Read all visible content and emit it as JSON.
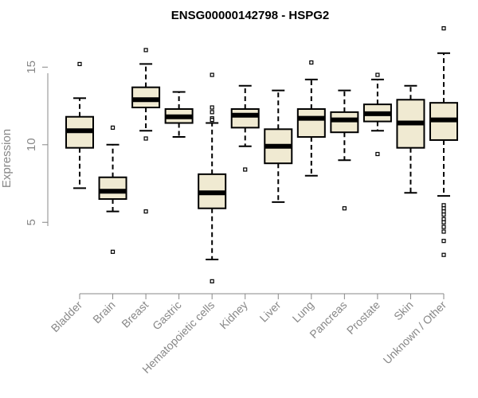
{
  "chart_data": {
    "type": "box",
    "title": "ENSG00000142798 - HSPG2",
    "xlabel": "",
    "ylabel": "Expression",
    "ylim": [
      0.5,
      18.3
    ],
    "yticks": [
      5,
      10,
      15
    ],
    "grid": false,
    "colors": {
      "box_fill": "#F0EAD2",
      "box_stroke": "#000000",
      "median": "#000000",
      "axis": "#888888"
    },
    "categories": [
      "Bladder",
      "Brain",
      "Breast",
      "Gastric",
      "Hematopoietic cells",
      "Kidney",
      "Liver",
      "Lung",
      "Pancreas",
      "Prostate",
      "Skin",
      "Unknown / Other"
    ],
    "boxes": [
      {
        "category": "Bladder",
        "whisker_low": 7.2,
        "q1": 9.8,
        "median": 10.9,
        "q3": 11.8,
        "whisker_high": 13.0,
        "outliers": [
          15.2
        ]
      },
      {
        "category": "Brain",
        "whisker_low": 5.7,
        "q1": 6.5,
        "median": 7.0,
        "q3": 7.9,
        "whisker_high": 10.0,
        "outliers": [
          11.1,
          3.1
        ]
      },
      {
        "category": "Breast",
        "whisker_low": 10.9,
        "q1": 12.4,
        "median": 12.9,
        "q3": 13.7,
        "whisker_high": 15.2,
        "outliers": [
          16.1,
          10.4,
          5.7
        ]
      },
      {
        "category": "Gastric",
        "whisker_low": 10.5,
        "q1": 11.4,
        "median": 11.8,
        "q3": 12.3,
        "whisker_high": 13.4,
        "outliers": []
      },
      {
        "category": "Hematopoietic cells",
        "whisker_low": 2.6,
        "q1": 5.9,
        "median": 6.9,
        "q3": 8.1,
        "whisker_high": 11.4,
        "outliers": [
          14.5,
          12.4,
          12.1,
          11.7,
          11.6,
          1.2
        ]
      },
      {
        "category": "Kidney",
        "whisker_low": 9.9,
        "q1": 11.1,
        "median": 11.9,
        "q3": 12.3,
        "whisker_high": 13.8,
        "outliers": [
          8.4
        ]
      },
      {
        "category": "Liver",
        "whisker_low": 6.3,
        "q1": 8.8,
        "median": 9.9,
        "q3": 11.0,
        "whisker_high": 13.5,
        "outliers": []
      },
      {
        "category": "Lung",
        "whisker_low": 8.0,
        "q1": 10.5,
        "median": 11.7,
        "q3": 12.3,
        "whisker_high": 14.2,
        "outliers": [
          15.3
        ]
      },
      {
        "category": "Pancreas",
        "whisker_low": 9.0,
        "q1": 10.8,
        "median": 11.6,
        "q3": 12.1,
        "whisker_high": 13.5,
        "outliers": [
          5.9
        ]
      },
      {
        "category": "Prostate",
        "whisker_low": 10.9,
        "q1": 11.5,
        "median": 12.0,
        "q3": 12.6,
        "whisker_high": 14.2,
        "outliers": [
          14.5,
          9.4
        ]
      },
      {
        "category": "Skin",
        "whisker_low": 6.9,
        "q1": 9.8,
        "median": 11.4,
        "q3": 12.9,
        "whisker_high": 13.8,
        "outliers": []
      },
      {
        "category": "Unknown / Other",
        "whisker_low": 6.7,
        "q1": 10.3,
        "median": 11.6,
        "q3": 12.7,
        "whisker_high": 15.9,
        "outliers": [
          17.5,
          6.1,
          5.9,
          5.7,
          5.5,
          5.2,
          5.0,
          4.7,
          4.4,
          3.8,
          2.9
        ]
      }
    ]
  }
}
